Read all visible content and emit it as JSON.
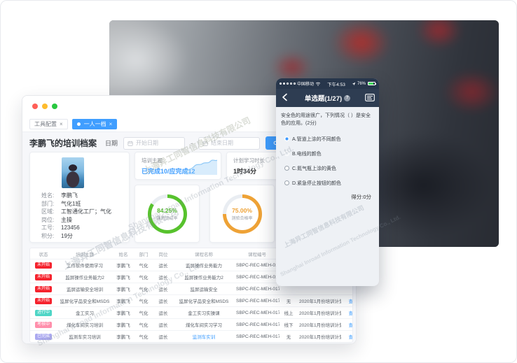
{
  "desktop": {
    "tabs": [
      {
        "label": "工具配置",
        "active": ""
      },
      {
        "label": "一人一档",
        "active": "active"
      }
    ],
    "page_title": "李鹏飞的培训档案",
    "filter": {
      "date_label": "日期",
      "start_placeholder": "开始日期",
      "separator": "-",
      "end_placeholder": "结束日期",
      "search_button": "查询"
    },
    "profile": {
      "fields": [
        {
          "label": "姓名:",
          "value": "李鹏飞"
        },
        {
          "label": "部门:",
          "value": "气化1班"
        },
        {
          "label": "区域:",
          "value": "工智通化工厂；气化"
        },
        {
          "label": "岗位:",
          "value": "主操"
        },
        {
          "label": "工号:",
          "value": "123456"
        },
        {
          "label": "积分:",
          "value": "19分"
        }
      ]
    },
    "stats": {
      "theme_label": "培训主题:",
      "theme_value": "已完成10/应完成12",
      "plan_label": "计划学习时长",
      "plan_value": "1时34分",
      "donuts": [
        {
          "percent": "84.25%",
          "label": "课题完成率",
          "value": 84.25,
          "color": "#57c22d"
        },
        {
          "percent": "75.00%",
          "label": "测验合格率",
          "value": 75,
          "color": "#eea236"
        }
      ]
    },
    "table": {
      "headers": [
        "状态",
        "培训主题",
        "姓名",
        "部门",
        "岗位",
        "课程名称",
        "课程编号",
        "",
        "",
        ""
      ],
      "rows": [
        {
          "status": "未开始",
          "status_type": "st-red",
          "theme": "工作软件使用学习",
          "name": "李鹏飞",
          "dept": "气化",
          "post": "运长",
          "course": "监屏操作业务能力",
          "course_class": "",
          "code": "SBPC-REC-MEH-017",
          "mode": "",
          "plan": "",
          "action": ""
        },
        {
          "status": "未开始",
          "status_type": "st-red",
          "theme": "监屏操作业务能力2",
          "name": "李鹏飞",
          "dept": "气化",
          "post": "运长",
          "course": "监屏操作业务能力2",
          "course_class": "",
          "code": "SBPC-REC-MEH-017",
          "mode": "",
          "plan": "",
          "action": ""
        },
        {
          "status": "未开始",
          "status_type": "st-red",
          "theme": "监屏运输安全培训",
          "name": "李鹏飞",
          "dept": "气化",
          "post": "运长",
          "course": "监屏运输安全",
          "course_class": "",
          "code": "SBPC-REC-MEH-017",
          "mode": "",
          "plan": "",
          "action": ""
        },
        {
          "status": "未开始",
          "status_type": "st-red",
          "theme": "监屏化学品安全和MSDS",
          "name": "李鹏飞",
          "dept": "气化",
          "post": "运长",
          "course": "监屏化学品安全和MSDS",
          "course_class": "",
          "code": "SBPC-REC-MEH-017",
          "mode": "无",
          "plan": "2020年1月份培训计划",
          "action": "查看"
        },
        {
          "status": "进行中",
          "status_type": "st-teal",
          "theme": "金工实习",
          "name": "李鹏飞",
          "dept": "气化",
          "post": "运长",
          "course": "金工实习实操课",
          "course_class": "",
          "code": "SBPC-REC-MEH-017",
          "mode": "线上",
          "plan": "2020年1月份培训计划",
          "action": "查看"
        },
        {
          "status": "考核中",
          "status_type": "st-pink",
          "theme": "煤化车间实习培训",
          "name": "李鹏飞",
          "dept": "气化",
          "post": "运长",
          "course": "煤化车间实习学习",
          "course_class": "",
          "code": "SBPC-REC-MEH-017",
          "mode": "线下",
          "plan": "2020年1月份培训计划",
          "action": "查看"
        },
        {
          "status": "已完成",
          "status_type": "st-purple",
          "theme": "监测车实习培训",
          "name": "李鹏飞",
          "dept": "气化",
          "post": "运长",
          "course": "监测车实训",
          "course_class": "link",
          "code": "SBPC-REC-MEH-017",
          "mode": "无",
          "plan": "2020年1月份培训计划",
          "action": "查看"
        }
      ]
    }
  },
  "phone": {
    "status": {
      "carrier": "中国移动",
      "time": "下午4:53",
      "battery": "76%"
    },
    "nav": {
      "title": "单选题(1/27)"
    },
    "question": "安全色的用途很广，下列情况（ ）是安全色的应用。(2分)",
    "options": [
      {
        "label": "A.管道上涂的不同颜色",
        "style": "opt-red",
        "radio": "radio-selected"
      },
      {
        "label": "B.电线的颜色",
        "style": "opt-green",
        "radio": "radio-light"
      },
      {
        "label": "C.氮气瓶上涂的黄色",
        "style": "",
        "radio": ""
      },
      {
        "label": "D.紧急停止按钮的颜色",
        "style": "",
        "radio": ""
      }
    ],
    "score": "得分:0分"
  },
  "watermark": {
    "cn": "上海异工同智信息科技有限公司",
    "en": "Shanghai Inroad Information Technology Co., Ltd."
  },
  "colors": {
    "accent_blue": "#409eff",
    "status_red": "#f5222d",
    "status_teal": "#4ed5c6",
    "status_pink": "#ff8fab",
    "status_purple": "#aba9f0",
    "option_wrong_red": "#d60f2c",
    "option_correct_green": "#27b24b",
    "donut_green": "#57c22d",
    "donut_orange": "#eea236",
    "phone_header_navy": "#2e3d52"
  }
}
